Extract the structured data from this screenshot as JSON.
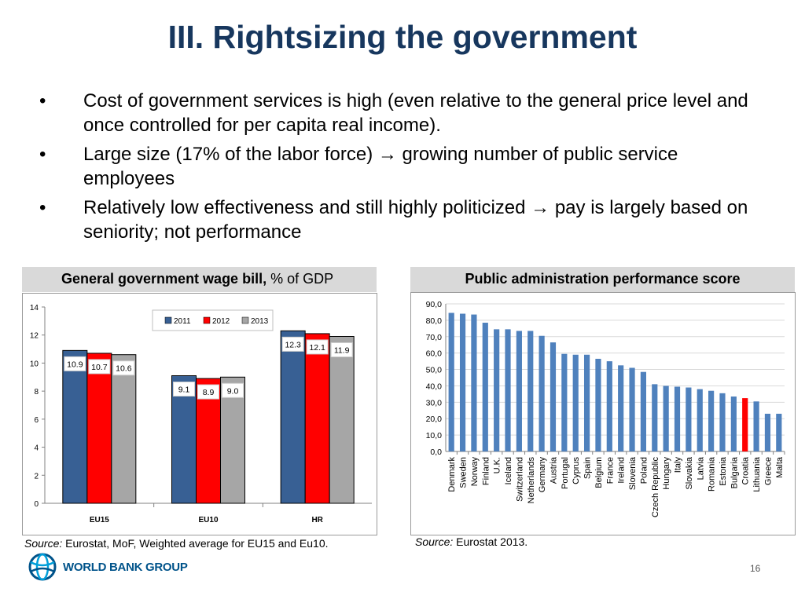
{
  "title": "III. Rightsizing the government",
  "bullets": [
    {
      "symbol": "•",
      "text": "Cost of government services is high (even relative to the general price level and once controlled for per capita real income)."
    },
    {
      "symbol": "•",
      "text": "Large size (17% of the labor force) → growing number of public service employees"
    },
    {
      "symbol": "•",
      "text": "Relatively low effectiveness and still highly politicized → pay is largely based on seniority; not performance"
    }
  ],
  "left_header": {
    "bold": "General government wage bill,",
    "rest": " % of GDP"
  },
  "right_header": {
    "bold": "Public administration performance score"
  },
  "left_source": {
    "label": "Source:",
    "text": " Eurostat, MoF, Weighted average for EU15 and Eu10."
  },
  "right_source": {
    "label": "Source:",
    "text": " Eurostat 2013."
  },
  "logo_text": "WORLD BANK GROUP",
  "page_number": "16",
  "colors": {
    "title": "#17375e",
    "s2011": "#386094",
    "s2012": "#ff0000",
    "s2013": "#a6a6a6",
    "bar_blue": "#4f81bd",
    "highlight": "#ff0000"
  },
  "chart_data": [
    {
      "type": "bar",
      "title": "General government wage bill, % of GDP",
      "categories": [
        "EU15",
        "EU10",
        "HR"
      ],
      "series": [
        {
          "name": "2011",
          "values": [
            10.9,
            9.1,
            12.3
          ]
        },
        {
          "name": "2012",
          "values": [
            10.7,
            8.9,
            12.1
          ]
        },
        {
          "name": "2013",
          "values": [
            10.6,
            9.0,
            11.9
          ]
        }
      ],
      "ylim": [
        0,
        14
      ],
      "yticks": [
        0,
        2,
        4,
        6,
        8,
        10,
        12,
        14
      ],
      "legend": "top-center"
    },
    {
      "type": "bar",
      "title": "Public administration performance score",
      "categories": [
        "Denmark",
        "Sweden",
        "Norway",
        "Finland",
        "U.K.",
        "Iceland",
        "Switzerland",
        "Netherlands",
        "Germany",
        "Austria",
        "Portugal",
        "Cyprus",
        "Spain",
        "Belgium",
        "France",
        "Ireland",
        "Slovenia",
        "Poland",
        "Czech Republic",
        "Hungary",
        "Italy",
        "Slovakia",
        "Latvia",
        "Romania",
        "Estonia",
        "Bulgaria",
        "Croatia",
        "Lithuania",
        "Greece",
        "Malta"
      ],
      "values": [
        84.5,
        84.0,
        83.5,
        78.5,
        74.5,
        74.5,
        73.5,
        73.5,
        70.5,
        66.5,
        59.5,
        59.0,
        59.0,
        56.5,
        55.0,
        52.5,
        51.0,
        48.5,
        41.0,
        40.0,
        39.5,
        39.0,
        38.0,
        37.0,
        35.5,
        33.5,
        32.5,
        30.5,
        23.0,
        23.0
      ],
      "highlight": "Croatia",
      "ylim": [
        0,
        90
      ],
      "yticks": [
        "0,0",
        "10,0",
        "20,0",
        "30,0",
        "40,0",
        "50,0",
        "60,0",
        "70,0",
        "80,0",
        "90,0"
      ]
    }
  ]
}
